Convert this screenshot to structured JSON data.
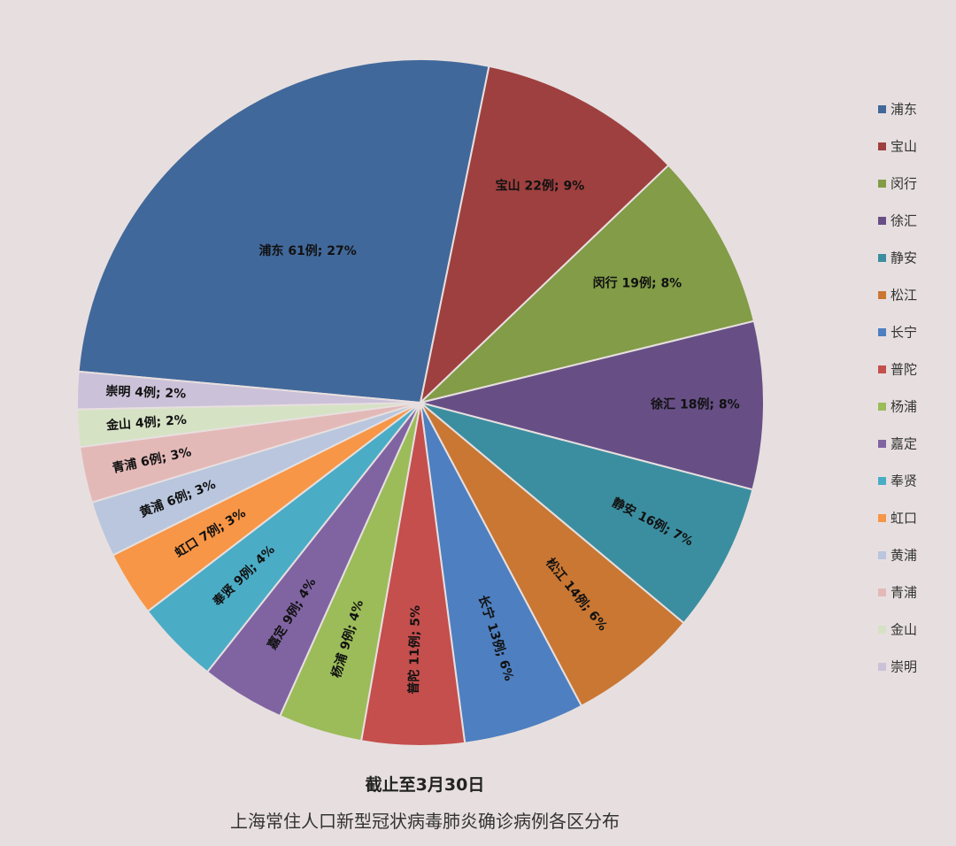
{
  "chart_data": {
    "type": "pie",
    "categories": [
      "浦东",
      "宝山",
      "闵行",
      "徐汇",
      "静安",
      "松江",
      "长宁",
      "普陀",
      "杨浦",
      "嘉定",
      "奉贤",
      "虹口",
      "黄浦",
      "青浦",
      "金山",
      "崇明"
    ],
    "values": [
      61,
      22,
      19,
      18,
      16,
      14,
      13,
      11,
      9,
      9,
      9,
      7,
      6,
      6,
      4,
      4
    ],
    "data_labels": [
      "浦东 61例; 27%",
      "宝山 22例; 9%",
      "闵行 19例; 8%",
      "徐汇 18例; 8%",
      "静安 16例; 7%",
      "松江 14例; 6%",
      "长宁 13例; 6%",
      "普陀 11例; 5%",
      "杨浦 9例; 4%",
      "嘉定 9例; 4%",
      "奉贤 9例; 4%",
      "虹口 7例; 3%",
      "黄浦 6例; 3%",
      "青浦 6例; 3%",
      "金山 4例; 2%",
      "崇明 4例; 2%"
    ],
    "colors": [
      "#41689a",
      "#9e403f",
      "#829c47",
      "#674f86",
      "#3b8ea0",
      "#c97733",
      "#4e7fc0",
      "#c44f4d",
      "#9bbc59",
      "#8064a2",
      "#4bacc6",
      "#f79646",
      "#b9c6dd",
      "#e3b9b8",
      "#d6e2c4",
      "#cbc1d8"
    ],
    "legend": [
      "浦东",
      "宝山",
      "闵行",
      "徐汇",
      "静安",
      "松江",
      "长宁",
      "普陀",
      "杨浦",
      "嘉定",
      "奉贤",
      "虹口",
      "黄浦",
      "青浦",
      "金山",
      "崇明"
    ],
    "legend_position": "right",
    "title": "截止至3月30日",
    "subtitle": "上海常住人口新型冠状病毒肺炎确诊病例各区分布"
  }
}
